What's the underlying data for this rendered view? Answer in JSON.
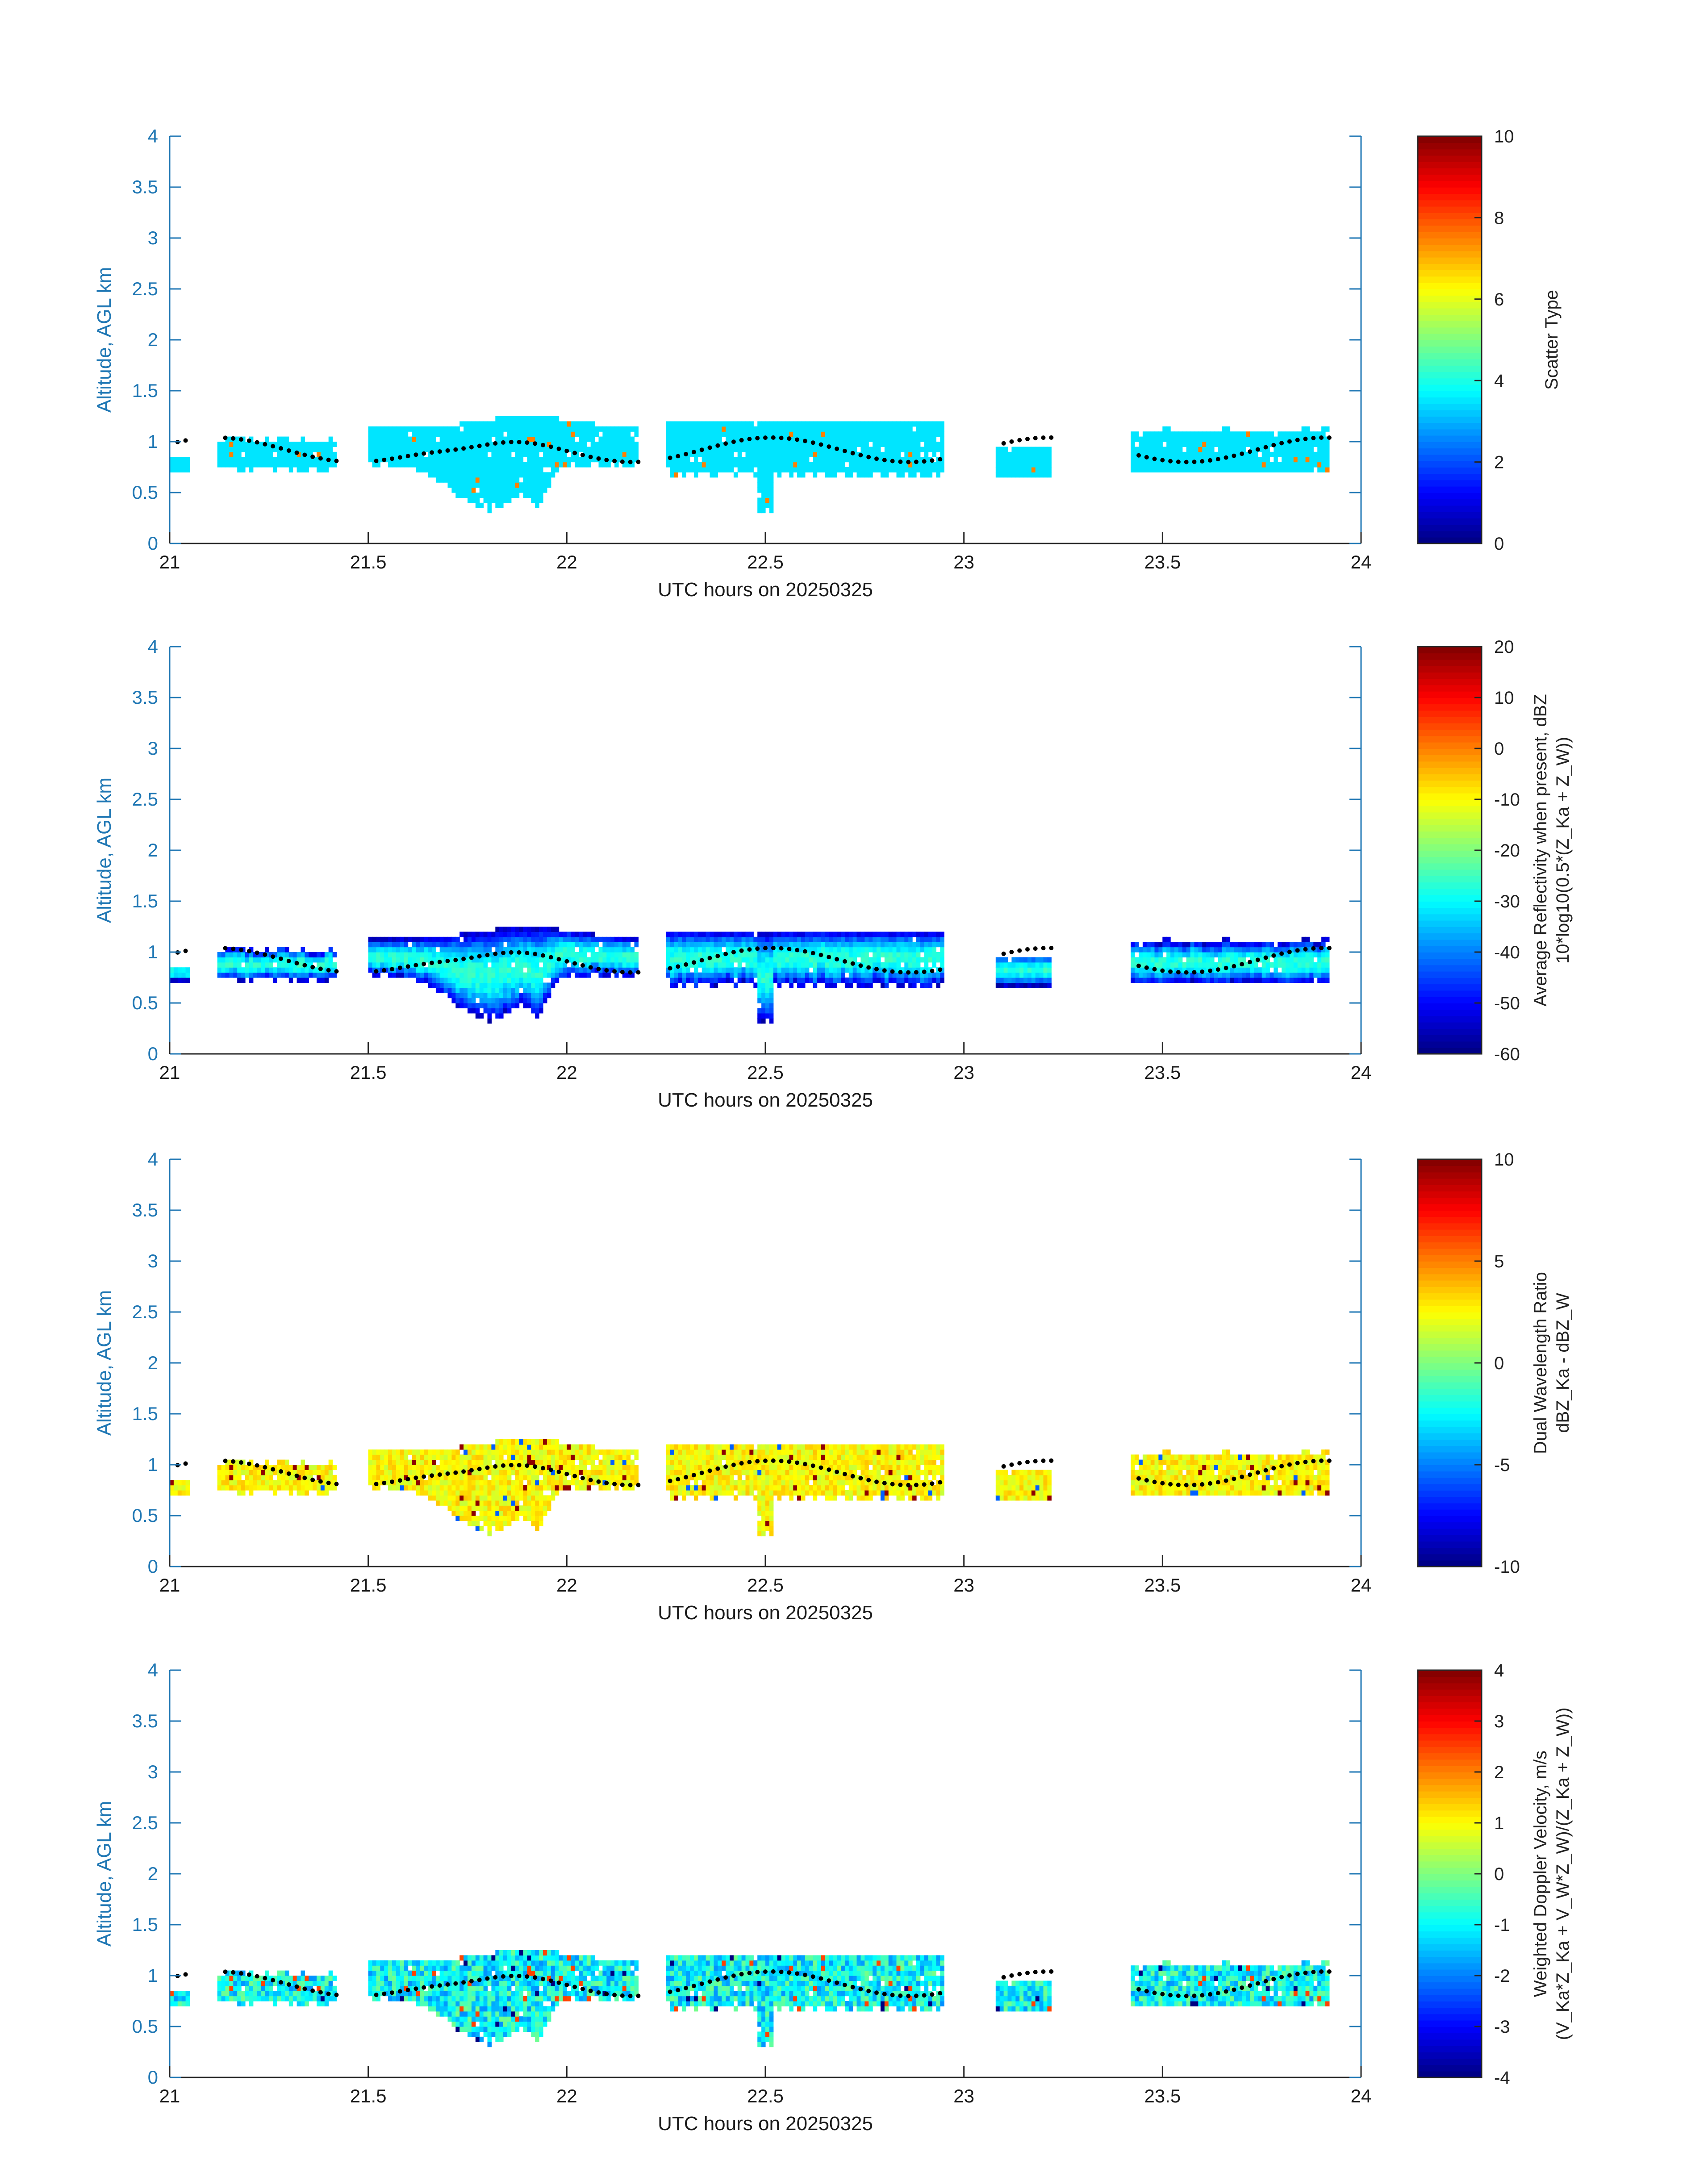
{
  "figure": {
    "x_label": "UTC hours on 20250325",
    "y_label": "Altitude, AGL km",
    "x_ticks": [
      "21",
      "21.5",
      "22",
      "22.5",
      "23",
      "23.5",
      "24"
    ],
    "y_ticks": [
      "0",
      "0.5",
      "1",
      "1.5",
      "2",
      "2.5",
      "3",
      "3.5",
      "4"
    ]
  },
  "chart_data": [
    {
      "type": "heatmap",
      "title": "",
      "xlabel": "UTC hours on 20250325",
      "ylabel": "Altitude, AGL km",
      "xlim": [
        21,
        24
      ],
      "ylim": [
        0,
        4
      ],
      "grid": false,
      "colormap": "jet",
      "colorbar": {
        "label_lines": [
          "Scatter Type"
        ],
        "range": [
          0,
          10
        ],
        "ticks": [
          "0",
          "2",
          "4",
          "6",
          "8",
          "10"
        ]
      },
      "dominant_value": 3.5,
      "cloud_base_points_km": "black dots near 0.8–1.0 km tracking cloud base",
      "echo_segments_utc": [
        [
          21.0,
          21.05
        ],
        [
          21.12,
          21.42
        ],
        [
          21.5,
          22.18
        ],
        [
          22.25,
          22.95
        ],
        [
          23.08,
          23.22
        ],
        [
          23.42,
          23.92
        ]
      ]
    },
    {
      "type": "heatmap",
      "title": "",
      "xlabel": "UTC hours on 20250325",
      "ylabel": "Altitude, AGL km",
      "xlim": [
        21,
        24
      ],
      "ylim": [
        0,
        4
      ],
      "grid": false,
      "colormap": "jet",
      "colorbar": {
        "label_lines": [
          "Average Reflectivity when present, dBZ",
          "10*log10(0.5*(Z_Ka + Z_W))"
        ],
        "range": [
          -60,
          20
        ],
        "ticks": [
          "-60",
          "-50",
          "-40",
          "-30",
          "-20",
          "-10",
          "0",
          "10",
          "20"
        ]
      },
      "value_range_in_echo": [
        -55,
        -25
      ]
    },
    {
      "type": "heatmap",
      "title": "",
      "xlabel": "UTC hours on 20250325",
      "ylabel": "Altitude, AGL km",
      "xlim": [
        21,
        24
      ],
      "ylim": [
        0,
        4
      ],
      "grid": false,
      "colormap": "jet",
      "colorbar": {
        "label_lines": [
          "Dual Wavelength Ratio",
          "dBZ_Ka - dBZ_W"
        ],
        "range": [
          -10,
          10
        ],
        "ticks": [
          "-10",
          "-5",
          "0",
          "5",
          "10"
        ]
      },
      "value_range_in_echo": [
        0,
        4
      ]
    },
    {
      "type": "heatmap",
      "title": "",
      "xlabel": "UTC hours on 20250325",
      "ylabel": "Altitude, AGL km",
      "xlim": [
        21,
        24
      ],
      "ylim": [
        0,
        4
      ],
      "grid": false,
      "colormap": "jet",
      "colorbar": {
        "label_lines": [
          "Weighted Doppler Velocity, m/s",
          "(V_Ka*Z_Ka + V_W*Z_W)/(Z_Ka + Z_W))"
        ],
        "range": [
          -4,
          4
        ],
        "ticks": [
          "-4",
          "-3",
          "-2",
          "-1",
          "0",
          "1",
          "2",
          "3",
          "4"
        ]
      },
      "value_range_in_echo": [
        -2,
        1
      ]
    }
  ]
}
